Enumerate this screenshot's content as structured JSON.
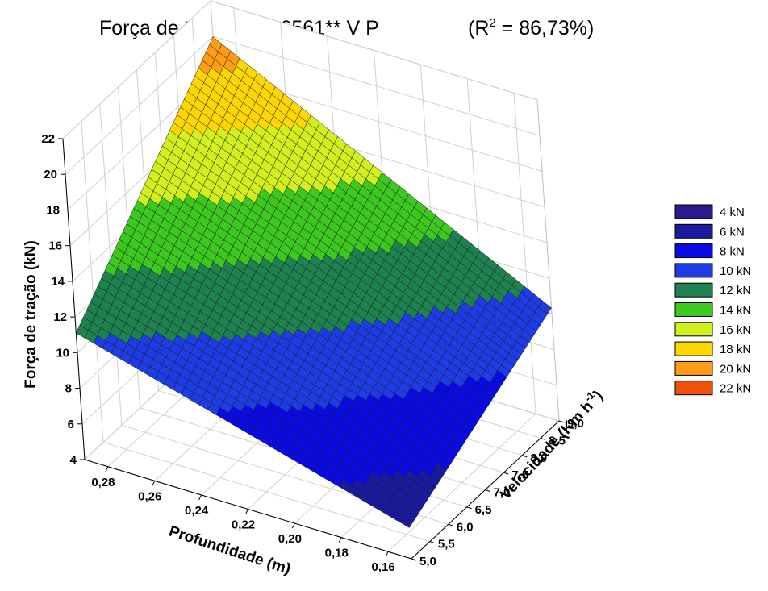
{
  "chart_data": {
    "type": "surface",
    "title": "Força de tração = 7,6561** V P",
    "r2_prefix": "(R",
    "r2_sup": "2",
    "r2_value": " = 86,73%)",
    "zlabel": "Força de tração (kN)",
    "xlabel": "Profundidade (m)",
    "ylabel_main": "Velocidade (Km h",
    "ylabel_sup": "-1",
    "ylabel_close": ")",
    "coefficient": 7.6561,
    "x_ticks": [
      "0,28",
      "0,26",
      "0,24",
      "0,22",
      "0,20",
      "0,18",
      "0,16"
    ],
    "y_ticks": [
      "5,0",
      "5,5",
      "6,0",
      "6,5",
      "7,0",
      "7,5",
      "8,0",
      "8,5",
      "9,0"
    ],
    "z_ticks": [
      "4",
      "6",
      "8",
      "10",
      "12",
      "14",
      "16",
      "18",
      "20",
      "22"
    ],
    "x_range": [
      0.15,
      0.29
    ],
    "y_range": [
      5.0,
      9.0
    ],
    "z_range": [
      4,
      22
    ],
    "grid": true,
    "legend_position": "right",
    "legend": [
      {
        "label": "4 kN",
        "color": "#2a1a8c"
      },
      {
        "label": "6 kN",
        "color": "#1a1aa0"
      },
      {
        "label": "8 kN",
        "color": "#0a0ae6"
      },
      {
        "label": "10 kN",
        "color": "#1e3ce6"
      },
      {
        "label": "12 kN",
        "color": "#1e8250"
      },
      {
        "label": "14 kN",
        "color": "#3cc81e"
      },
      {
        "label": "16 kN",
        "color": "#d2f01e"
      },
      {
        "label": "18 kN",
        "color": "#ffd700"
      },
      {
        "label": "20 kN",
        "color": "#ff9c14"
      },
      {
        "label": "22 kN",
        "color": "#f0500a"
      }
    ]
  }
}
